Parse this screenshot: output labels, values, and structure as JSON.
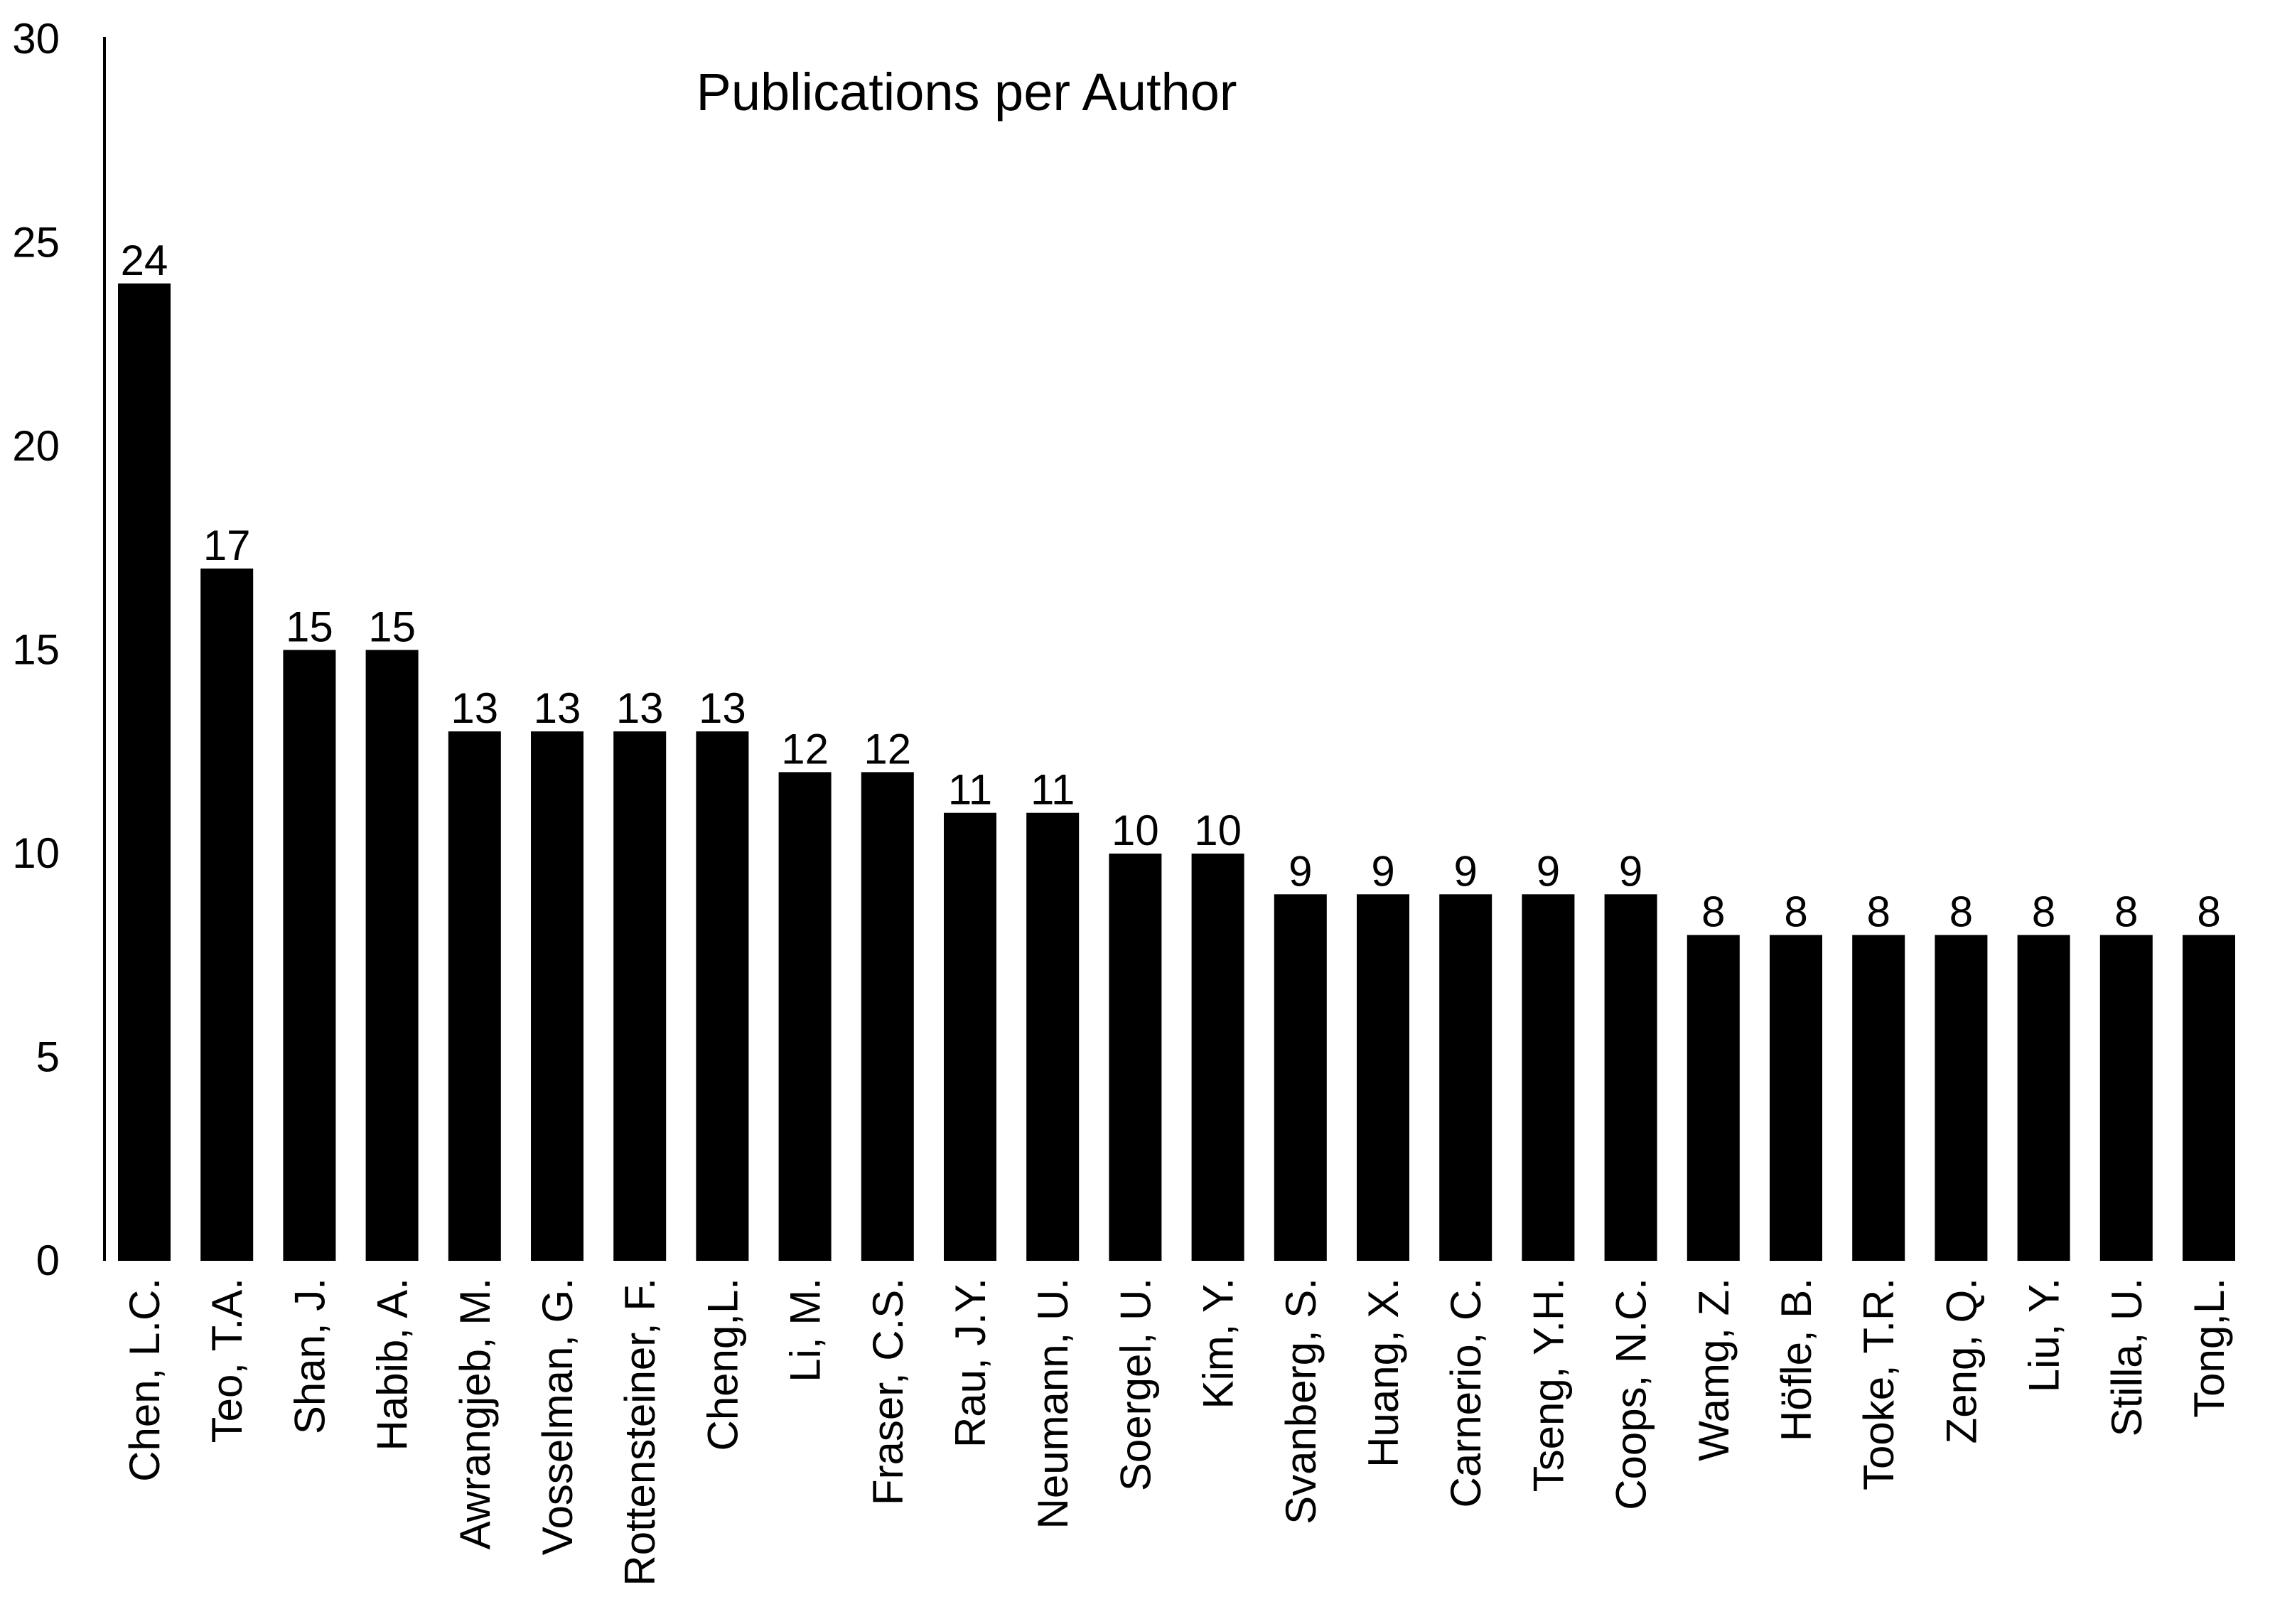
{
  "chart_data": {
    "type": "bar",
    "title": "Publications per Author",
    "xlabel": "",
    "ylabel": "",
    "ylim": [
      0,
      30
    ],
    "yticks": [
      "0",
      "5",
      "10",
      "15",
      "20",
      "25",
      "30"
    ],
    "categories": [
      "Chen, L.C.",
      "Teo, T.A.",
      "Shan, J.",
      "Habib, A.",
      "Awrangjeb, M.",
      "Vosselman, G.",
      "Rottensteiner, F.",
      "Cheng,L.",
      "Li, M.",
      "Fraser, C.S.",
      "Rau, J.Y.",
      "Neumann, U.",
      "Soergel, U.",
      "Kim, Y.",
      "Svanberg, S.",
      "Huang, X.",
      "Carnerio, C.",
      "Tseng, Y.H.",
      "Coops, N.C.",
      "Wamg, Z.",
      "Höfle, B.",
      "Tooke, T.R.",
      "Zeng, Q.",
      "Liu, Y.",
      "Stilla, U.",
      "Tong,L."
    ],
    "values": [
      24,
      17,
      15,
      15,
      13,
      13,
      13,
      13,
      12,
      12,
      11,
      11,
      10,
      10,
      9,
      9,
      9,
      9,
      9,
      8,
      8,
      8,
      8,
      8,
      8,
      8
    ],
    "data_labels": [
      "24",
      "17",
      "15",
      "15",
      "13",
      "13",
      "13",
      "13",
      "12",
      "12",
      "11",
      "11",
      "10",
      "10",
      "9",
      "9",
      "9",
      "9",
      "9",
      "8",
      "8",
      "8",
      "8",
      "8",
      "8",
      "8"
    ],
    "bar_color": "#000000",
    "grid": false,
    "legend": "none"
  }
}
